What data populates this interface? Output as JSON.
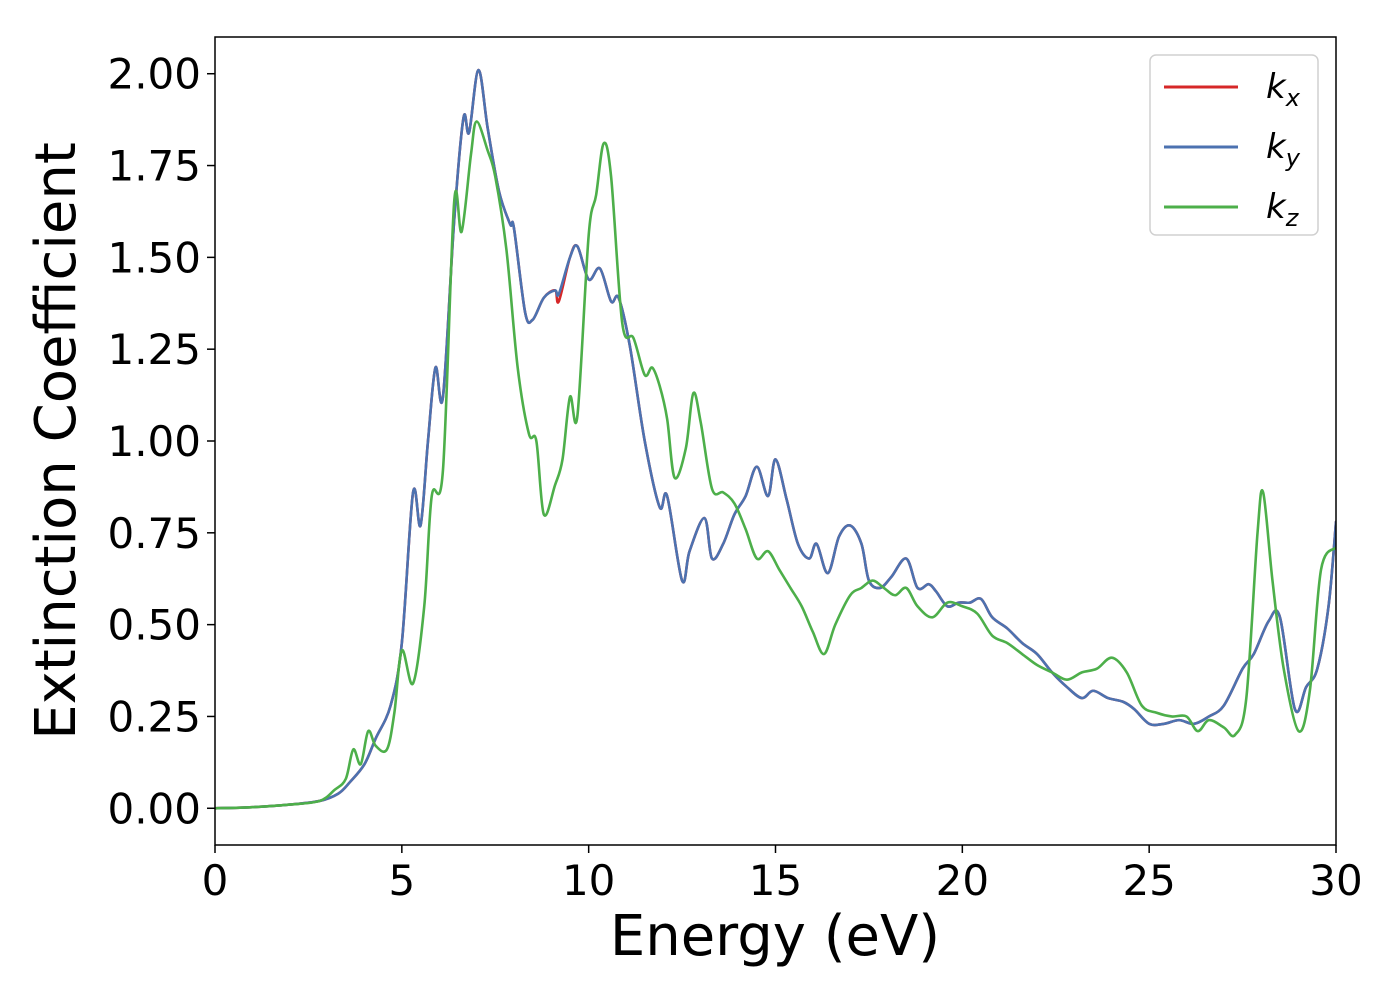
{
  "chart_data": {
    "type": "line",
    "xlabel": "Energy (eV)",
    "ylabel": "Extinction Coefficient",
    "xlim": [
      0,
      30
    ],
    "ylim": [
      -0.1,
      2.1
    ],
    "xticks": [
      "0",
      "5",
      "10",
      "15",
      "20",
      "25",
      "30"
    ],
    "xtick_values": [
      0,
      5,
      10,
      15,
      20,
      25,
      30
    ],
    "yticks": [
      "0.00",
      "0.25",
      "0.50",
      "0.75",
      "1.00",
      "1.25",
      "1.50",
      "1.75",
      "2.00"
    ],
    "ytick_values": [
      0,
      0.25,
      0.5,
      0.75,
      1.0,
      1.25,
      1.5,
      1.75,
      2.0
    ],
    "grid": false,
    "legend_position": "top-right",
    "series": [
      {
        "name": "k",
        "sub": "x",
        "color": "#d62728",
        "points": [
          [
            0,
            0
          ],
          [
            1,
            0.003
          ],
          [
            2,
            0.01
          ],
          [
            2.8,
            0.02
          ],
          [
            3.3,
            0.04
          ],
          [
            3.6,
            0.07
          ],
          [
            4.0,
            0.12
          ],
          [
            4.3,
            0.19
          ],
          [
            4.7,
            0.28
          ],
          [
            5.0,
            0.45
          ],
          [
            5.3,
            0.86
          ],
          [
            5.5,
            0.77
          ],
          [
            5.7,
            1.0
          ],
          [
            5.9,
            1.2
          ],
          [
            6.1,
            1.12
          ],
          [
            6.4,
            1.6
          ],
          [
            6.65,
            1.88
          ],
          [
            6.8,
            1.84
          ],
          [
            7.05,
            2.01
          ],
          [
            7.3,
            1.85
          ],
          [
            7.6,
            1.68
          ],
          [
            7.9,
            1.59
          ],
          [
            8.0,
            1.58
          ],
          [
            8.3,
            1.35
          ],
          [
            8.5,
            1.33
          ],
          [
            8.8,
            1.39
          ],
          [
            9.1,
            1.41
          ],
          [
            9.2,
            1.38
          ],
          [
            9.5,
            1.5
          ],
          [
            9.7,
            1.53
          ],
          [
            10.0,
            1.44
          ],
          [
            10.3,
            1.47
          ],
          [
            10.6,
            1.38
          ],
          [
            10.8,
            1.39
          ],
          [
            11.1,
            1.26
          ],
          [
            11.5,
            1.0
          ],
          [
            11.9,
            0.82
          ],
          [
            12.1,
            0.85
          ],
          [
            12.5,
            0.62
          ],
          [
            12.7,
            0.7
          ],
          [
            13.1,
            0.79
          ],
          [
            13.3,
            0.68
          ],
          [
            13.6,
            0.72
          ],
          [
            13.9,
            0.8
          ],
          [
            14.2,
            0.85
          ],
          [
            14.5,
            0.93
          ],
          [
            14.8,
            0.85
          ],
          [
            15.0,
            0.95
          ],
          [
            15.3,
            0.84
          ],
          [
            15.6,
            0.72
          ],
          [
            15.9,
            0.68
          ],
          [
            16.1,
            0.72
          ],
          [
            16.4,
            0.64
          ],
          [
            16.7,
            0.74
          ],
          [
            17.0,
            0.77
          ],
          [
            17.3,
            0.72
          ],
          [
            17.5,
            0.62
          ],
          [
            17.8,
            0.6
          ],
          [
            18.1,
            0.63
          ],
          [
            18.5,
            0.68
          ],
          [
            18.8,
            0.6
          ],
          [
            19.1,
            0.61
          ],
          [
            19.3,
            0.59
          ],
          [
            19.6,
            0.55
          ],
          [
            19.9,
            0.56
          ],
          [
            20.2,
            0.56
          ],
          [
            20.5,
            0.57
          ],
          [
            20.8,
            0.52
          ],
          [
            21.2,
            0.49
          ],
          [
            21.6,
            0.45
          ],
          [
            22.0,
            0.42
          ],
          [
            22.4,
            0.37
          ],
          [
            22.8,
            0.33
          ],
          [
            23.2,
            0.3
          ],
          [
            23.5,
            0.32
          ],
          [
            23.9,
            0.3
          ],
          [
            24.3,
            0.29
          ],
          [
            24.6,
            0.27
          ],
          [
            25.0,
            0.23
          ],
          [
            25.4,
            0.23
          ],
          [
            25.8,
            0.24
          ],
          [
            26.2,
            0.23
          ],
          [
            26.6,
            0.25
          ],
          [
            27.0,
            0.28
          ],
          [
            27.5,
            0.38
          ],
          [
            27.8,
            0.42
          ],
          [
            28.2,
            0.51
          ],
          [
            28.5,
            0.52
          ],
          [
            28.9,
            0.27
          ],
          [
            29.2,
            0.33
          ],
          [
            29.5,
            0.38
          ],
          [
            29.8,
            0.55
          ],
          [
            30.0,
            0.78
          ]
        ]
      },
      {
        "name": "k",
        "sub": "y",
        "color": "#4c72b0",
        "points": [
          [
            0,
            0
          ],
          [
            1,
            0.003
          ],
          [
            2,
            0.01
          ],
          [
            2.8,
            0.02
          ],
          [
            3.3,
            0.04
          ],
          [
            3.6,
            0.07
          ],
          [
            4.0,
            0.12
          ],
          [
            4.3,
            0.19
          ],
          [
            4.7,
            0.28
          ],
          [
            5.0,
            0.45
          ],
          [
            5.3,
            0.86
          ],
          [
            5.5,
            0.77
          ],
          [
            5.7,
            1.0
          ],
          [
            5.9,
            1.2
          ],
          [
            6.1,
            1.12
          ],
          [
            6.4,
            1.6
          ],
          [
            6.65,
            1.88
          ],
          [
            6.8,
            1.84
          ],
          [
            7.05,
            2.01
          ],
          [
            7.3,
            1.85
          ],
          [
            7.6,
            1.68
          ],
          [
            7.9,
            1.59
          ],
          [
            8.0,
            1.58
          ],
          [
            8.3,
            1.35
          ],
          [
            8.5,
            1.33
          ],
          [
            8.8,
            1.39
          ],
          [
            9.1,
            1.41
          ],
          [
            9.2,
            1.4
          ],
          [
            9.5,
            1.5
          ],
          [
            9.7,
            1.53
          ],
          [
            10.0,
            1.44
          ],
          [
            10.3,
            1.47
          ],
          [
            10.6,
            1.38
          ],
          [
            10.8,
            1.39
          ],
          [
            11.1,
            1.26
          ],
          [
            11.5,
            1.0
          ],
          [
            11.9,
            0.82
          ],
          [
            12.1,
            0.85
          ],
          [
            12.5,
            0.62
          ],
          [
            12.7,
            0.7
          ],
          [
            13.1,
            0.79
          ],
          [
            13.3,
            0.68
          ],
          [
            13.6,
            0.72
          ],
          [
            13.9,
            0.8
          ],
          [
            14.2,
            0.85
          ],
          [
            14.5,
            0.93
          ],
          [
            14.8,
            0.85
          ],
          [
            15.0,
            0.95
          ],
          [
            15.3,
            0.84
          ],
          [
            15.6,
            0.72
          ],
          [
            15.9,
            0.68
          ],
          [
            16.1,
            0.72
          ],
          [
            16.4,
            0.64
          ],
          [
            16.7,
            0.74
          ],
          [
            17.0,
            0.77
          ],
          [
            17.3,
            0.72
          ],
          [
            17.5,
            0.62
          ],
          [
            17.8,
            0.6
          ],
          [
            18.1,
            0.63
          ],
          [
            18.5,
            0.68
          ],
          [
            18.8,
            0.6
          ],
          [
            19.1,
            0.61
          ],
          [
            19.3,
            0.59
          ],
          [
            19.6,
            0.55
          ],
          [
            19.9,
            0.56
          ],
          [
            20.2,
            0.56
          ],
          [
            20.5,
            0.57
          ],
          [
            20.8,
            0.52
          ],
          [
            21.2,
            0.49
          ],
          [
            21.6,
            0.45
          ],
          [
            22.0,
            0.42
          ],
          [
            22.4,
            0.37
          ],
          [
            22.8,
            0.33
          ],
          [
            23.2,
            0.3
          ],
          [
            23.5,
            0.32
          ],
          [
            23.9,
            0.3
          ],
          [
            24.3,
            0.29
          ],
          [
            24.6,
            0.27
          ],
          [
            25.0,
            0.23
          ],
          [
            25.4,
            0.23
          ],
          [
            25.8,
            0.24
          ],
          [
            26.2,
            0.23
          ],
          [
            26.6,
            0.25
          ],
          [
            27.0,
            0.28
          ],
          [
            27.5,
            0.38
          ],
          [
            27.8,
            0.42
          ],
          [
            28.2,
            0.51
          ],
          [
            28.5,
            0.52
          ],
          [
            28.9,
            0.27
          ],
          [
            29.2,
            0.33
          ],
          [
            29.5,
            0.38
          ],
          [
            29.8,
            0.55
          ],
          [
            30.0,
            0.78
          ]
        ]
      },
      {
        "name": "k",
        "sub": "z",
        "color": "#4daf4a",
        "points": [
          [
            0,
            0
          ],
          [
            1,
            0.003
          ],
          [
            2,
            0.01
          ],
          [
            2.8,
            0.02
          ],
          [
            3.2,
            0.05
          ],
          [
            3.5,
            0.08
          ],
          [
            3.7,
            0.16
          ],
          [
            3.9,
            0.12
          ],
          [
            4.1,
            0.21
          ],
          [
            4.3,
            0.17
          ],
          [
            4.6,
            0.16
          ],
          [
            4.8,
            0.26
          ],
          [
            5.0,
            0.43
          ],
          [
            5.3,
            0.34
          ],
          [
            5.6,
            0.55
          ],
          [
            5.8,
            0.85
          ],
          [
            6.1,
            0.92
          ],
          [
            6.4,
            1.65
          ],
          [
            6.6,
            1.57
          ],
          [
            6.85,
            1.78
          ],
          [
            7.0,
            1.87
          ],
          [
            7.3,
            1.79
          ],
          [
            7.5,
            1.72
          ],
          [
            7.8,
            1.52
          ],
          [
            8.1,
            1.2
          ],
          [
            8.4,
            1.02
          ],
          [
            8.6,
            1.0
          ],
          [
            8.8,
            0.8
          ],
          [
            9.1,
            0.88
          ],
          [
            9.3,
            0.95
          ],
          [
            9.5,
            1.12
          ],
          [
            9.7,
            1.07
          ],
          [
            10.0,
            1.56
          ],
          [
            10.2,
            1.67
          ],
          [
            10.4,
            1.81
          ],
          [
            10.6,
            1.72
          ],
          [
            10.9,
            1.32
          ],
          [
            11.2,
            1.28
          ],
          [
            11.5,
            1.18
          ],
          [
            11.7,
            1.2
          ],
          [
            11.9,
            1.15
          ],
          [
            12.1,
            1.06
          ],
          [
            12.3,
            0.9
          ],
          [
            12.6,
            0.98
          ],
          [
            12.8,
            1.13
          ],
          [
            13.0,
            1.05
          ],
          [
            13.3,
            0.87
          ],
          [
            13.6,
            0.86
          ],
          [
            13.9,
            0.83
          ],
          [
            14.2,
            0.76
          ],
          [
            14.5,
            0.68
          ],
          [
            14.8,
            0.7
          ],
          [
            15.1,
            0.65
          ],
          [
            15.4,
            0.6
          ],
          [
            15.7,
            0.55
          ],
          [
            16.0,
            0.48
          ],
          [
            16.3,
            0.42
          ],
          [
            16.6,
            0.5
          ],
          [
            17.0,
            0.58
          ],
          [
            17.3,
            0.6
          ],
          [
            17.6,
            0.62
          ],
          [
            17.9,
            0.6
          ],
          [
            18.2,
            0.58
          ],
          [
            18.5,
            0.6
          ],
          [
            18.8,
            0.55
          ],
          [
            19.2,
            0.52
          ],
          [
            19.6,
            0.56
          ],
          [
            20.0,
            0.55
          ],
          [
            20.4,
            0.53
          ],
          [
            20.8,
            0.47
          ],
          [
            21.2,
            0.45
          ],
          [
            21.6,
            0.42
          ],
          [
            22.0,
            0.39
          ],
          [
            22.4,
            0.37
          ],
          [
            22.8,
            0.35
          ],
          [
            23.2,
            0.37
          ],
          [
            23.6,
            0.38
          ],
          [
            24.0,
            0.41
          ],
          [
            24.4,
            0.37
          ],
          [
            24.8,
            0.28
          ],
          [
            25.2,
            0.26
          ],
          [
            25.6,
            0.25
          ],
          [
            26.0,
            0.25
          ],
          [
            26.3,
            0.21
          ],
          [
            26.6,
            0.24
          ],
          [
            27.0,
            0.22
          ],
          [
            27.3,
            0.2
          ],
          [
            27.6,
            0.3
          ],
          [
            27.9,
            0.75
          ],
          [
            28.05,
            0.86
          ],
          [
            28.3,
            0.62
          ],
          [
            28.6,
            0.38
          ],
          [
            29.0,
            0.21
          ],
          [
            29.3,
            0.32
          ],
          [
            29.6,
            0.65
          ],
          [
            30.0,
            0.71
          ]
        ]
      }
    ]
  }
}
